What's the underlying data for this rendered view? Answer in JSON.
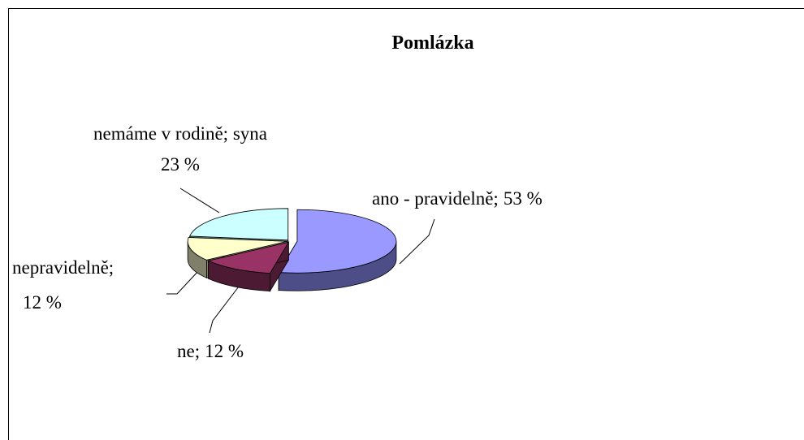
{
  "chart_data": {
    "type": "pie3d",
    "title": "Pomlázka",
    "categories": [
      "ano - pravidelně;",
      "ne;",
      "nepravidelně;",
      "nemáme v rodině; syna"
    ],
    "values": [
      53,
      12,
      12,
      23
    ],
    "value_labels": [
      "53 %",
      "12 %",
      "12 %",
      "23 %"
    ],
    "colors": [
      "#9999ff",
      "#993366",
      "#ffffcc",
      "#ccffff"
    ],
    "side_colors": [
      "#4d4d88",
      "#4d1a33",
      "#80806a",
      "#6a8888"
    ]
  }
}
